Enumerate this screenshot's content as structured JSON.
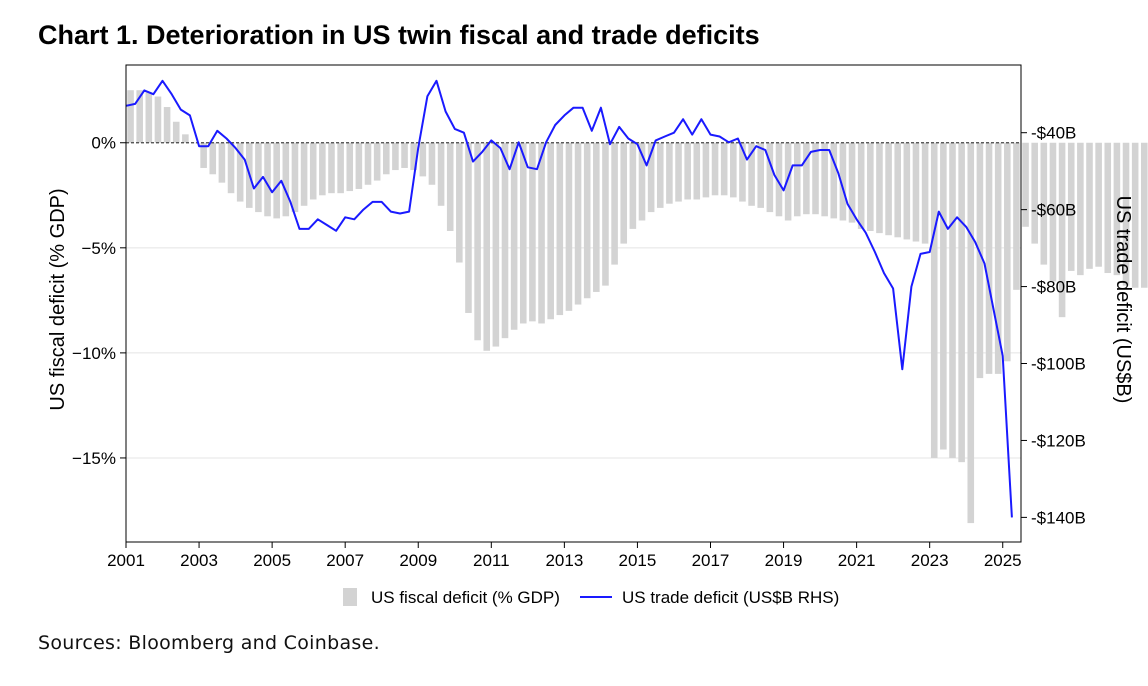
{
  "title": "Chart 1. Deterioration in US twin fiscal and trade deficits",
  "source": "Sources: Bloomberg and Coinbase.",
  "chart_data": {
    "type": "bar+line",
    "xlabel": "",
    "x_tick_labels": [
      "2001",
      "2003",
      "2005",
      "2007",
      "2009",
      "2011",
      "2013",
      "2015",
      "2017",
      "2019",
      "2021",
      "2023",
      "2025"
    ],
    "x_range": [
      2001.0,
      2025.5
    ],
    "left_axis": {
      "label": "US fiscal deficit (% GDP)",
      "range": [
        -19.0,
        3.7
      ],
      "ticks": [
        0,
        -5,
        -10,
        -15
      ],
      "tick_labels": [
        "0%",
        "−5%",
        "−10%",
        "−15%"
      ]
    },
    "right_axis": {
      "label": "US trade deficit (US$B)",
      "range": [
        -146.4,
        -22.4
      ],
      "ticks": [
        -40,
        -60,
        -80,
        -100,
        -120,
        -140
      ],
      "tick_labels": [
        "-$40B",
        "-$60B",
        "-$80B",
        "-$100B",
        "-$120B",
        "-$140B"
      ]
    },
    "series": [
      {
        "name": "US fiscal deficit (% GDP)",
        "type": "bar",
        "axis": "left",
        "color": "#d3d3d3",
        "x_start": 2001.125,
        "x_step": 0.25,
        "values": [
          2.5,
          2.5,
          2.4,
          2.2,
          1.7,
          1.0,
          0.4,
          0.0,
          -1.2,
          -1.5,
          -1.9,
          -2.4,
          -2.8,
          -3.1,
          -3.3,
          -3.5,
          -3.6,
          -3.5,
          -3.3,
          -3.0,
          -2.7,
          -2.5,
          -2.4,
          -2.4,
          -2.3,
          -2.2,
          -2.0,
          -1.8,
          -1.5,
          -1.3,
          -1.2,
          -1.3,
          -1.6,
          -2.0,
          -3.0,
          -4.2,
          -5.7,
          -8.1,
          -9.4,
          -9.9,
          -9.7,
          -9.3,
          -8.9,
          -8.6,
          -8.5,
          -8.6,
          -8.4,
          -8.2,
          -8.0,
          -7.7,
          -7.4,
          -7.1,
          -6.8,
          -5.8,
          -4.8,
          -4.1,
          -3.7,
          -3.3,
          -3.1,
          -2.9,
          -2.8,
          -2.7,
          -2.7,
          -2.6,
          -2.5,
          -2.5,
          -2.6,
          -2.8,
          -3.0,
          -3.1,
          -3.3,
          -3.5,
          -3.7,
          -3.5,
          -3.4,
          -3.4,
          -3.5,
          -3.6,
          -3.7,
          -3.8,
          -4.1,
          -4.2,
          -4.3,
          -4.4,
          -4.5,
          -4.6,
          -4.7,
          -4.8,
          -15.0,
          -14.6,
          -15.0,
          -15.2,
          -18.1,
          -11.2,
          -11.0,
          -11.0,
          -10.4,
          -7.0,
          -4.0,
          -4.8,
          -5.8,
          -6.6,
          -8.3,
          -6.1,
          -6.3,
          -6.0,
          -5.9,
          -6.2,
          -6.3,
          -6.8,
          -6.9,
          -6.9
        ]
      },
      {
        "name": "US trade deficit (US$B RHS)",
        "type": "line",
        "axis": "right",
        "color": "#1a1aff",
        "x_start": 2001.0,
        "x_step": 0.25,
        "values": [
          -33,
          -32.5,
          -29,
          -30,
          -26.5,
          -30,
          -34,
          -35.5,
          -43.5,
          -43.5,
          -39.5,
          -41.5,
          -44,
          -47,
          -54.5,
          -51.5,
          -55.5,
          -52.5,
          -58,
          -65,
          -65,
          -62.5,
          -64,
          -65.5,
          -62,
          -62.5,
          -60,
          -58,
          -58,
          -60.5,
          -61,
          -60.5,
          -44,
          -30.5,
          -26.5,
          -34.5,
          -39,
          -40,
          -47.5,
          -45,
          -42,
          -44,
          -49.5,
          -42.5,
          -49,
          -49.5,
          -42.5,
          -38,
          -35.5,
          -33.5,
          -33.5,
          -39.5,
          -33.5,
          -43,
          -38.5,
          -41.5,
          -43,
          -48.5,
          -42,
          -41,
          -40,
          -36.5,
          -40.5,
          -36.5,
          -40.5,
          -41,
          -42.5,
          -41.5,
          -47,
          -43.5,
          -44.5,
          -51,
          -55,
          -48.5,
          -48.5,
          -45,
          -44.5,
          -44.5,
          -50.5,
          -58.5,
          -62.5,
          -66,
          -71,
          -76.5,
          -80.5,
          -101.5,
          -80,
          -71.5,
          -71,
          -60.5,
          -65,
          -62,
          -64.5,
          -68.5,
          -74,
          -86,
          -98,
          -140
        ]
      }
    ],
    "legend": {
      "position": "bottom-center",
      "items": [
        "US fiscal deficit (% GDP)",
        "US trade deficit (US$B RHS)"
      ]
    }
  }
}
